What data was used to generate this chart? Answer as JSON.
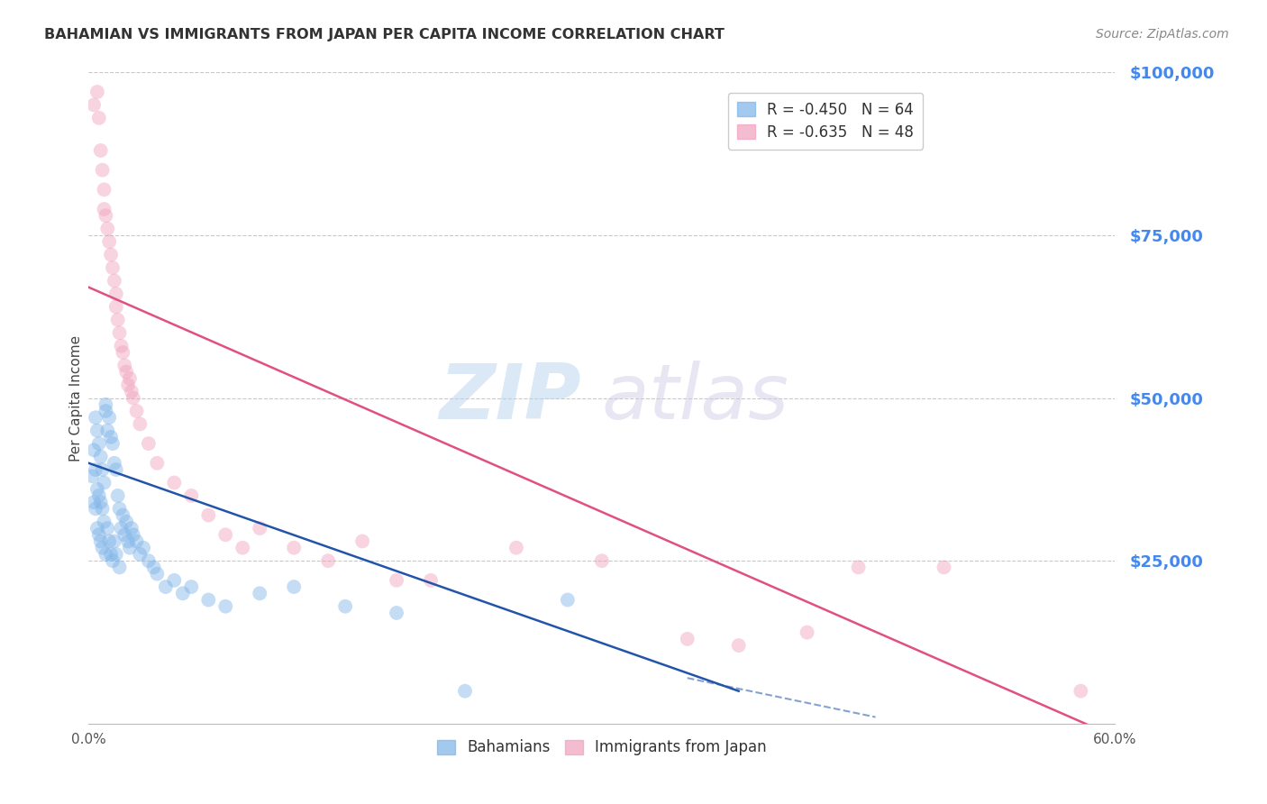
{
  "title": "BAHAMIAN VS IMMIGRANTS FROM JAPAN PER CAPITA INCOME CORRELATION CHART",
  "source": "Source: ZipAtlas.com",
  "ylabel": "Per Capita Income",
  "xlim": [
    0.0,
    0.6
  ],
  "ylim": [
    0,
    100000
  ],
  "yticks": [
    25000,
    50000,
    75000,
    100000
  ],
  "ytick_labels": [
    "$25,000",
    "$50,000",
    "$75,000",
    "$100,000"
  ],
  "xticks": [
    0.0,
    0.6
  ],
  "xtick_labels": [
    "0.0%",
    "60.0%"
  ],
  "bahamian_R": -0.45,
  "bahamian_N": 64,
  "japan_R": -0.635,
  "japan_N": 48,
  "bahamian_color": "#7EB3E8",
  "japan_color": "#F0A0BC",
  "bahamian_line_color": "#2255AA",
  "japan_line_color": "#E05080",
  "watermark_zip": "ZIP",
  "watermark_atlas": "atlas",
  "background_color": "#FFFFFF",
  "grid_color": "#BBBBBB",
  "axis_label_color": "#4488EE",
  "title_color": "#333333",
  "bahamian_line_x0": 0.0,
  "bahamian_line_y0": 40000,
  "bahamian_line_x1": 0.38,
  "bahamian_line_y1": 5000,
  "bahamian_line_dash_x0": 0.35,
  "bahamian_line_dash_y0": 7000,
  "bahamian_line_dash_x1": 0.46,
  "bahamian_line_dash_y1": 1000,
  "japan_line_x0": 0.0,
  "japan_line_y0": 67000,
  "japan_line_x1": 0.6,
  "japan_line_y1": -2000,
  "bahamian_x": [
    0.002,
    0.003,
    0.003,
    0.004,
    0.004,
    0.004,
    0.005,
    0.005,
    0.005,
    0.006,
    0.006,
    0.006,
    0.007,
    0.007,
    0.007,
    0.008,
    0.008,
    0.008,
    0.009,
    0.009,
    0.01,
    0.01,
    0.01,
    0.011,
    0.011,
    0.012,
    0.012,
    0.013,
    0.013,
    0.014,
    0.014,
    0.015,
    0.015,
    0.016,
    0.016,
    0.017,
    0.018,
    0.018,
    0.019,
    0.02,
    0.021,
    0.022,
    0.023,
    0.024,
    0.025,
    0.026,
    0.028,
    0.03,
    0.032,
    0.035,
    0.038,
    0.04,
    0.045,
    0.05,
    0.055,
    0.06,
    0.07,
    0.08,
    0.1,
    0.12,
    0.15,
    0.18,
    0.22,
    0.28
  ],
  "bahamian_y": [
    38000,
    42000,
    34000,
    47000,
    39000,
    33000,
    45000,
    36000,
    30000,
    43000,
    35000,
    29000,
    41000,
    34000,
    28000,
    39000,
    33000,
    27000,
    37000,
    31000,
    49000,
    48000,
    26000,
    45000,
    30000,
    47000,
    28000,
    44000,
    26000,
    43000,
    25000,
    40000,
    28000,
    39000,
    26000,
    35000,
    33000,
    24000,
    30000,
    32000,
    29000,
    31000,
    28000,
    27000,
    30000,
    29000,
    28000,
    26000,
    27000,
    25000,
    24000,
    23000,
    21000,
    22000,
    20000,
    21000,
    19000,
    18000,
    20000,
    21000,
    18000,
    17000,
    5000,
    19000
  ],
  "japan_x": [
    0.003,
    0.005,
    0.006,
    0.007,
    0.008,
    0.009,
    0.009,
    0.01,
    0.011,
    0.012,
    0.013,
    0.014,
    0.015,
    0.016,
    0.016,
    0.017,
    0.018,
    0.019,
    0.02,
    0.021,
    0.022,
    0.023,
    0.024,
    0.025,
    0.026,
    0.028,
    0.03,
    0.035,
    0.04,
    0.05,
    0.06,
    0.07,
    0.08,
    0.09,
    0.1,
    0.12,
    0.14,
    0.16,
    0.18,
    0.2,
    0.25,
    0.3,
    0.35,
    0.38,
    0.42,
    0.45,
    0.5,
    0.58
  ],
  "japan_y": [
    95000,
    97000,
    93000,
    88000,
    85000,
    82000,
    79000,
    78000,
    76000,
    74000,
    72000,
    70000,
    68000,
    66000,
    64000,
    62000,
    60000,
    58000,
    57000,
    55000,
    54000,
    52000,
    53000,
    51000,
    50000,
    48000,
    46000,
    43000,
    40000,
    37000,
    35000,
    32000,
    29000,
    27000,
    30000,
    27000,
    25000,
    28000,
    22000,
    22000,
    27000,
    25000,
    13000,
    12000,
    14000,
    24000,
    24000,
    5000
  ]
}
